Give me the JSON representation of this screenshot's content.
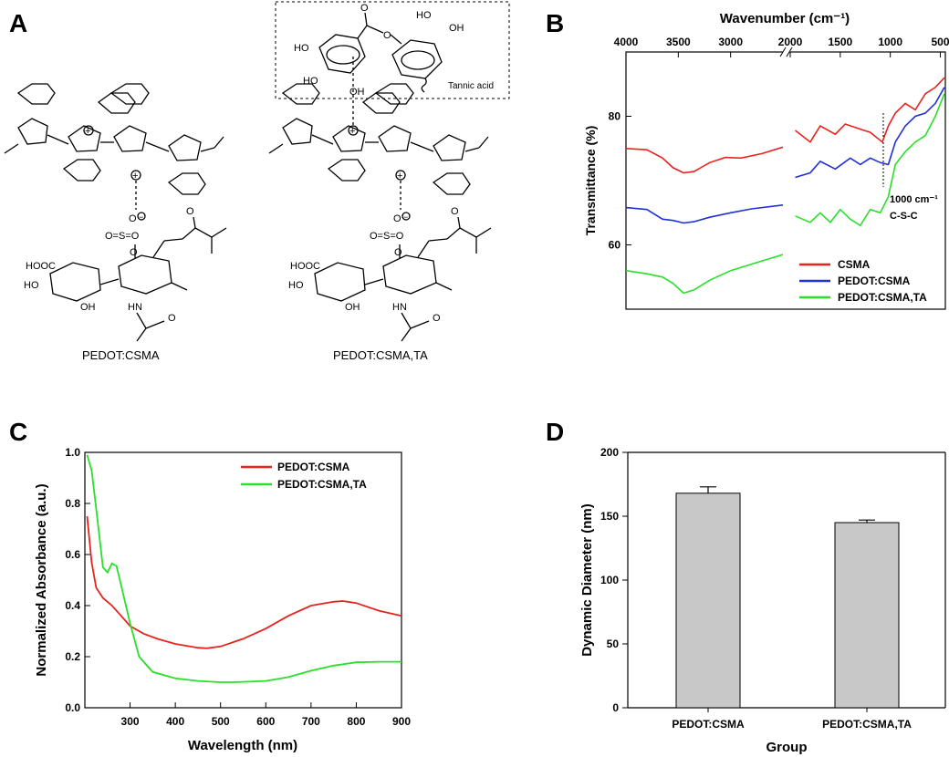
{
  "panels": {
    "A": {
      "letter": "A",
      "caption_left": "PEDOT:CSMA",
      "caption_right": "PEDOT:CSMA,TA",
      "tannic_label": "Tannic acid"
    },
    "B": {
      "letter": "B"
    },
    "C": {
      "letter": "C"
    },
    "D": {
      "letter": "D"
    }
  },
  "chart_data": [
    {
      "id": "B",
      "type": "line",
      "title": "",
      "xlabel": "Wavenumber (cm⁻¹)",
      "ylabel": "Transmittance (%)",
      "x_axis_position": "top",
      "x_reversed": true,
      "x_broken": true,
      "x_segments": [
        [
          4000,
          2500
        ],
        [
          2000,
          450
        ]
      ],
      "xticks": [
        4000,
        3500,
        3000,
        2000,
        1500,
        1000,
        500
      ],
      "ylim": [
        50,
        90
      ],
      "yticks": [
        60,
        80
      ],
      "legend_position": "bottom-right",
      "annotations": [
        "1000 cm⁻¹",
        "C-S-C"
      ],
      "series": [
        {
          "name": "CSMA",
          "color": "#e8231e",
          "x": [
            4000,
            3800,
            3650,
            3550,
            3450,
            3350,
            3200,
            3050,
            2900,
            2700,
            2500,
            1950,
            1800,
            1700,
            1550,
            1450,
            1300,
            1200,
            1080,
            1020,
            950,
            850,
            750,
            650,
            550,
            460
          ],
          "y": [
            75.0,
            74.8,
            73.5,
            72.0,
            71.2,
            71.4,
            72.8,
            73.6,
            73.5,
            74.2,
            75.2,
            77.8,
            76.0,
            78.5,
            77.2,
            78.8,
            78.0,
            77.5,
            76.0,
            78.5,
            80.5,
            82.0,
            81.0,
            83.5,
            84.5,
            86.0
          ]
        },
        {
          "name": "PEDOT:CSMA",
          "color": "#2030d8",
          "x": [
            4000,
            3800,
            3650,
            3550,
            3450,
            3350,
            3200,
            3000,
            2800,
            2500,
            1950,
            1800,
            1700,
            1550,
            1400,
            1300,
            1200,
            1100,
            1020,
            950,
            850,
            750,
            650,
            550,
            460
          ],
          "y": [
            65.8,
            65.5,
            64.0,
            63.8,
            63.4,
            63.6,
            64.3,
            65.0,
            65.6,
            66.2,
            70.5,
            71.2,
            73.0,
            71.8,
            73.5,
            72.5,
            73.5,
            72.8,
            72.5,
            76.0,
            78.5,
            80.0,
            80.5,
            82.0,
            84.5
          ]
        },
        {
          "name": "PEDOT:CSMA,TA",
          "color": "#28e028",
          "x": [
            4000,
            3800,
            3650,
            3550,
            3450,
            3350,
            3200,
            3000,
            2800,
            2500,
            1950,
            1800,
            1700,
            1600,
            1500,
            1400,
            1300,
            1200,
            1100,
            1020,
            950,
            850,
            750,
            650,
            550,
            460
          ],
          "y": [
            56.0,
            55.5,
            55.0,
            54.0,
            52.5,
            53.0,
            54.5,
            56.0,
            57.0,
            58.5,
            64.5,
            63.5,
            65.0,
            63.5,
            65.5,
            64.0,
            63.0,
            65.5,
            65.0,
            67.5,
            72.5,
            74.5,
            76.0,
            77.0,
            80.0,
            83.5
          ]
        }
      ]
    },
    {
      "id": "C",
      "type": "line",
      "title": "",
      "xlabel": "Wavelength (nm)",
      "ylabel": "Normalized Absorbance (a.u.)",
      "xlim": [
        200,
        900
      ],
      "ylim": [
        0.0,
        1.0
      ],
      "xticks": [
        300,
        400,
        500,
        600,
        700,
        800,
        900
      ],
      "yticks": [
        0.0,
        0.2,
        0.4,
        0.6,
        0.8,
        1.0
      ],
      "legend_position": "top-right",
      "series": [
        {
          "name": "PEDOT:CSMA",
          "color": "#e8231e",
          "x": [
            205,
            215,
            225,
            240,
            260,
            280,
            300,
            330,
            360,
            400,
            450,
            470,
            500,
            550,
            600,
            650,
            700,
            750,
            770,
            800,
            850,
            900
          ],
          "y": [
            0.75,
            0.57,
            0.47,
            0.43,
            0.4,
            0.36,
            0.32,
            0.29,
            0.27,
            0.25,
            0.235,
            0.233,
            0.24,
            0.27,
            0.31,
            0.36,
            0.4,
            0.415,
            0.418,
            0.41,
            0.38,
            0.36
          ]
        },
        {
          "name": "PEDOT:CSMA,TA",
          "color": "#28e028",
          "x": [
            205,
            215,
            225,
            240,
            250,
            260,
            270,
            280,
            300,
            320,
            350,
            400,
            450,
            500,
            530,
            600,
            650,
            700,
            750,
            800,
            850,
            900
          ],
          "y": [
            0.99,
            0.93,
            0.78,
            0.55,
            0.53,
            0.565,
            0.555,
            0.48,
            0.33,
            0.2,
            0.14,
            0.115,
            0.105,
            0.1,
            0.1,
            0.105,
            0.12,
            0.145,
            0.165,
            0.178,
            0.18,
            0.18
          ]
        }
      ]
    },
    {
      "id": "D",
      "type": "bar",
      "title": "",
      "xlabel": "Group",
      "ylabel": "Dynamic Diameter (nm)",
      "categories": [
        "PEDOT:CSMA",
        "PEDOT:CSMA,TA"
      ],
      "values": [
        168,
        145
      ],
      "errors": [
        5,
        2
      ],
      "ylim": [
        0,
        200
      ],
      "yticks": [
        0,
        50,
        100,
        150,
        200
      ],
      "bar_color": "#c8c8c8"
    }
  ]
}
